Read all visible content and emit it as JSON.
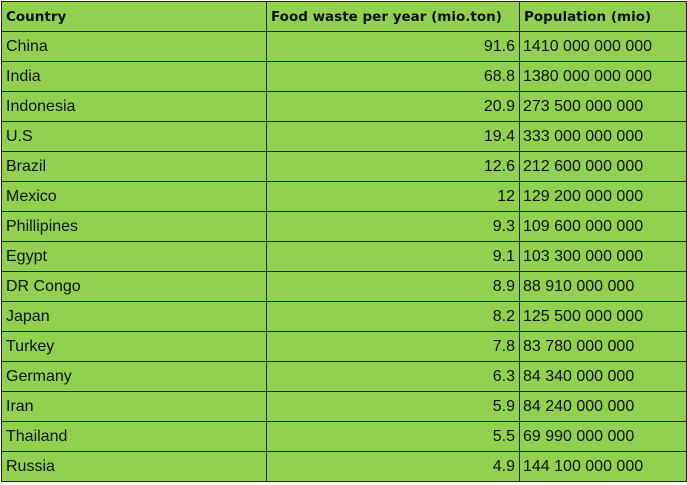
{
  "table": {
    "headers": [
      "Country",
      "Food waste per year (mio.ton)",
      "Population (mio)"
    ],
    "rows": [
      [
        "China",
        "91.6",
        "1410 000 000 000"
      ],
      [
        "India",
        "68.8",
        "1380 000 000 000"
      ],
      [
        "Indonesia",
        "20.9",
        "273 500 000 000"
      ],
      [
        "U.S",
        "19.4",
        "333 000 000 000"
      ],
      [
        "Brazil",
        "12.6",
        "212 600 000 000"
      ],
      [
        "Mexico",
        "12",
        "129 200 000 000"
      ],
      [
        "Phillipines",
        "9.3",
        "109 600 000 000"
      ],
      [
        "Egypt",
        "9.1",
        "103 300 000 000"
      ],
      [
        "DR Congo",
        "8.9",
        "88 910 000 000"
      ],
      [
        "Japan",
        "8.2",
        "125 500 000 000"
      ],
      [
        "Turkey",
        "7.8",
        "83 780 000 000"
      ],
      [
        "Germany",
        "6.3",
        "84 340 000 000"
      ],
      [
        "Iran",
        "5.9",
        "84 240 000 000"
      ],
      [
        "Thailand",
        "5.5",
        "69 990 000 000"
      ],
      [
        "Russia",
        "4.9",
        "144 100 000 000"
      ]
    ]
  },
  "colors": {
    "cell_background": "#92d050",
    "border": "#222222",
    "text": "#111111"
  }
}
